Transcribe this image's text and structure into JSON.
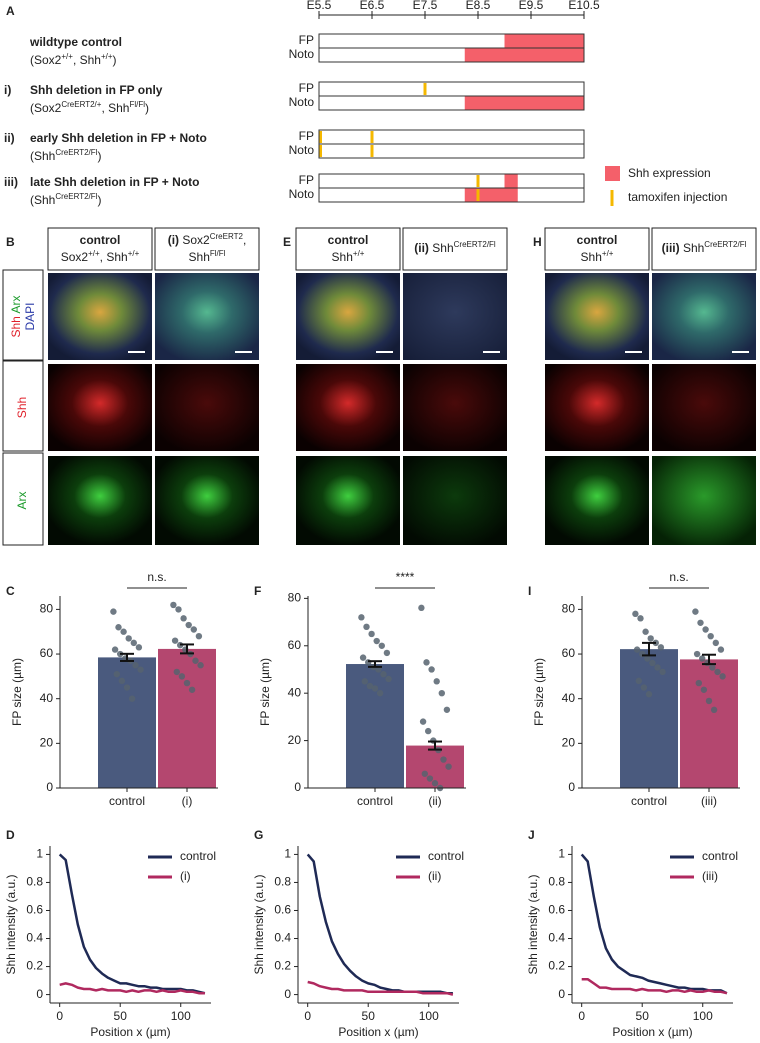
{
  "panel_a": {
    "label": "A",
    "timeline": {
      "lim": [
        5.5,
        10.5
      ],
      "ticks": [
        {
          "value": 5.5,
          "label": "E5.5"
        },
        {
          "value": 6.5,
          "label": "E6.5"
        },
        {
          "value": 7.5,
          "label": "E7.5"
        },
        {
          "value": 8.5,
          "label": "E8.5"
        },
        {
          "value": 9.5,
          "label": "E9.5"
        },
        {
          "value": 10.5,
          "label": "E10.5"
        }
      ]
    },
    "rows": [
      {
        "title": "wildtype control",
        "genotype": [
          {
            "text": "(Sox2",
            "sup": "+/+"
          },
          {
            "text": ", Shh",
            "sup": "+/+"
          },
          {
            "text": ")"
          }
        ],
        "tracks": [
          {
            "name": "FP",
            "expression": [
              [
                9.0,
                10.5
              ]
            ]
          },
          {
            "name": "Noto",
            "expression": [
              [
                8.25,
                10.5
              ]
            ]
          }
        ]
      },
      {
        "roman": "i)",
        "title": "Shh deletion in FP only",
        "genotype": [
          {
            "text": "(Sox2",
            "sup": "CreERT2/+"
          },
          {
            "text": ", Shh",
            "sup": "Fl/Fl"
          },
          {
            "text": ")"
          }
        ],
        "tracks": [
          {
            "name": "FP",
            "tamoxifen": [
              7.5
            ]
          },
          {
            "name": "Noto",
            "expression": [
              [
                8.25,
                10.5
              ]
            ]
          }
        ]
      },
      {
        "roman": "ii)",
        "title": "early Shh deletion in FP + Noto",
        "genotype": [
          {
            "text": "(Shh",
            "sup": "CreERT2/Fl"
          },
          {
            "text": ")"
          }
        ],
        "tracks": [
          {
            "name": "FP",
            "tamoxifen": [
              5.5,
              6.5
            ]
          },
          {
            "name": "Noto",
            "tamoxifen": [
              5.5,
              6.5
            ]
          }
        ]
      },
      {
        "roman": "iii)",
        "title": "late Shh deletion in FP + Noto",
        "genotype": [
          {
            "text": "(Shh",
            "sup": "CreERT2/Fl"
          },
          {
            "text": ")"
          }
        ],
        "tracks": [
          {
            "name": "FP",
            "expression": [
              [
                9.0,
                9.25
              ]
            ],
            "tamoxifen": [
              8.5
            ]
          },
          {
            "name": "Noto",
            "expression": [
              [
                8.25,
                9.25
              ]
            ],
            "tamoxifen": [
              8.5
            ]
          }
        ]
      }
    ],
    "expression_color": "#f4606a",
    "tamoxifen_color": "#f5b800",
    "legend": {
      "expression": "Shh expression",
      "tamoxifen": "tamoxifen injection"
    }
  },
  "image_panels": [
    {
      "label": "B",
      "row_labels": [
        [
          [
            {
              "text": "Shh",
              "color": "#e0202a"
            },
            {
              "text": " Arx",
              "color": "#1a9a2a"
            }
          ],
          [
            {
              "text": "DAPI",
              "color": "#2a3aa8"
            }
          ]
        ],
        [
          [
            {
              "text": "Shh",
              "color": "#e0202a"
            }
          ]
        ],
        [
          [
            {
              "text": "Arx",
              "color": "#1a9a2a"
            }
          ]
        ]
      ],
      "headers": [
        [
          [
            {
              "text": "control",
              "bold": true
            }
          ],
          [
            {
              "text": "Sox2",
              "sup": "+/+"
            },
            {
              "text": ", Shh",
              "sup": "+/+"
            }
          ]
        ],
        [
          [
            {
              "text": "(i)",
              "bold": true
            },
            {
              "text": " Sox2",
              "sup": "CreERT2"
            },
            {
              "text": ","
            }
          ],
          [
            {
              "text": "Shh",
              "sup": "Fl/Fl"
            }
          ]
        ]
      ]
    },
    {
      "label": "E",
      "headers": [
        [
          [
            {
              "text": "control",
              "bold": true
            }
          ],
          [
            {
              "text": "Shh",
              "sup": "+/+"
            }
          ]
        ],
        [
          [
            {
              "text": "(ii)",
              "bold": true
            },
            {
              "text": " Shh",
              "sup": "CreERT2/Fl"
            }
          ]
        ]
      ]
    },
    {
      "label": "H",
      "headers": [
        [
          [
            {
              "text": "control",
              "bold": true
            }
          ],
          [
            {
              "text": "Shh",
              "sup": "+/+"
            }
          ]
        ],
        [
          [
            {
              "text": "(iii)",
              "bold": true
            },
            {
              "text": " Shh",
              "sup": "CreERT2/Fl"
            }
          ]
        ]
      ]
    }
  ],
  "chart_data": [
    {
      "type": "bar",
      "label": "C",
      "categories": [
        "control",
        "(i)"
      ],
      "values": [
        58.5,
        62.3
      ],
      "errors": [
        1.6,
        2.0
      ],
      "colors": [
        "#4a5a7e",
        "#b4476f"
      ],
      "point_color": "#56636e",
      "points": [
        [
          79,
          72,
          70,
          67,
          65,
          63,
          62,
          60,
          58,
          57,
          55,
          53,
          51,
          48,
          45,
          40
        ],
        [
          82,
          80,
          76,
          73,
          71,
          68,
          66,
          64,
          62,
          60,
          57,
          55,
          52,
          50,
          47,
          44
        ]
      ],
      "ylim": [
        0,
        86
      ],
      "yticks": [
        0,
        20,
        40,
        60,
        80
      ],
      "ylabel": "FP size (µm)",
      "annotation": "n.s."
    },
    {
      "type": "bar",
      "label": "F",
      "categories": [
        "control",
        "(ii)"
      ],
      "values": [
        52.3,
        17.9
      ],
      "errors": [
        1.2,
        1.7
      ],
      "colors": [
        "#4a5a7e",
        "#b4476f"
      ],
      "point_color": "#56636e",
      "points": [
        [
          72,
          68,
          65,
          62,
          60,
          57,
          55,
          53,
          51,
          50,
          48,
          46,
          45,
          43,
          42,
          40
        ],
        [
          76,
          53,
          50,
          45,
          40,
          33,
          28,
          24,
          20,
          16,
          12,
          9,
          6,
          4,
          2,
          0
        ]
      ],
      "ylim": [
        0,
        81
      ],
      "yticks": [
        0,
        20,
        40,
        60,
        80
      ],
      "ylabel": "FP size (µm)",
      "annotation": "****"
    },
    {
      "type": "bar",
      "label": "I",
      "categories": [
        "control",
        "(iii)"
      ],
      "values": [
        62.2,
        57.6
      ],
      "errors": [
        2.8,
        2.1
      ],
      "colors": [
        "#4a5a7e",
        "#b4476f"
      ],
      "point_color": "#56636e",
      "points": [
        [
          78,
          76,
          70,
          67,
          65,
          63,
          62,
          60,
          58,
          56,
          54,
          52,
          48,
          45,
          42
        ],
        [
          79,
          74,
          71,
          68,
          65,
          62,
          60,
          58,
          56,
          54,
          52,
          50,
          47,
          44,
          39,
          35
        ]
      ],
      "ylim": [
        0,
        86
      ],
      "yticks": [
        0,
        20,
        40,
        60,
        80
      ],
      "ylabel": "FP size (µm)",
      "annotation": "n.s."
    },
    {
      "type": "line",
      "label": "D",
      "x": [
        0,
        5,
        10,
        15,
        20,
        25,
        30,
        35,
        40,
        45,
        50,
        55,
        60,
        65,
        70,
        75,
        80,
        85,
        90,
        95,
        100,
        105,
        110,
        115,
        120
      ],
      "series": [
        {
          "name": "control",
          "color": "#1f2a55",
          "values": [
            1.0,
            0.96,
            0.72,
            0.5,
            0.34,
            0.25,
            0.19,
            0.15,
            0.12,
            0.1,
            0.08,
            0.08,
            0.07,
            0.06,
            0.06,
            0.05,
            0.05,
            0.04,
            0.04,
            0.04,
            0.04,
            0.03,
            0.03,
            0.02,
            0.01
          ]
        },
        {
          "name": "(i)",
          "color": "#b0295f",
          "values": [
            0.07,
            0.08,
            0.07,
            0.05,
            0.04,
            0.04,
            0.03,
            0.04,
            0.03,
            0.03,
            0.03,
            0.02,
            0.03,
            0.02,
            0.03,
            0.03,
            0.02,
            0.03,
            0.02,
            0.02,
            0.03,
            0.02,
            0.02,
            0.01,
            0.01
          ]
        }
      ],
      "xlim": [
        -8,
        125
      ],
      "ylim": [
        -0.06,
        1.06
      ],
      "xticks": [
        0,
        50,
        100
      ],
      "yticks": [
        0,
        0.2,
        0.4,
        0.6,
        0.8,
        1
      ],
      "xlabel": "Position x (µm)",
      "ylabel": "Shh intensity (a.u.)"
    },
    {
      "type": "line",
      "label": "G",
      "x": [
        0,
        5,
        10,
        15,
        20,
        25,
        30,
        35,
        40,
        45,
        50,
        55,
        60,
        65,
        70,
        75,
        80,
        85,
        90,
        95,
        100,
        105,
        110,
        115,
        120
      ],
      "series": [
        {
          "name": "control",
          "color": "#1f2a55",
          "values": [
            1.0,
            0.95,
            0.7,
            0.52,
            0.38,
            0.29,
            0.22,
            0.17,
            0.13,
            0.1,
            0.08,
            0.07,
            0.05,
            0.04,
            0.03,
            0.03,
            0.02,
            0.02,
            0.02,
            0.02,
            0.02,
            0.02,
            0.02,
            0.01,
            0.01
          ]
        },
        {
          "name": "(ii)",
          "color": "#b0295f",
          "values": [
            0.09,
            0.08,
            0.06,
            0.05,
            0.04,
            0.04,
            0.03,
            0.03,
            0.03,
            0.03,
            0.02,
            0.02,
            0.02,
            0.02,
            0.02,
            0.02,
            0.02,
            0.02,
            0.02,
            0.01,
            0.01,
            0.01,
            0.01,
            0.01,
            0.0
          ]
        }
      ],
      "xlim": [
        -8,
        125
      ],
      "ylim": [
        -0.06,
        1.06
      ],
      "xticks": [
        0,
        50,
        100
      ],
      "yticks": [
        0,
        0.2,
        0.4,
        0.6,
        0.8,
        1
      ],
      "xlabel": "Position x (µm)",
      "ylabel": "Shh intensity (a.u.)"
    },
    {
      "type": "line",
      "label": "J",
      "x": [
        0,
        5,
        10,
        15,
        20,
        25,
        30,
        35,
        40,
        45,
        50,
        55,
        60,
        65,
        70,
        75,
        80,
        85,
        90,
        95,
        100,
        105,
        110,
        115,
        120
      ],
      "series": [
        {
          "name": "control",
          "color": "#1f2a55",
          "values": [
            1.0,
            0.95,
            0.7,
            0.48,
            0.33,
            0.25,
            0.2,
            0.17,
            0.14,
            0.13,
            0.12,
            0.1,
            0.09,
            0.08,
            0.07,
            0.06,
            0.05,
            0.05,
            0.04,
            0.04,
            0.04,
            0.03,
            0.03,
            0.03,
            0.01
          ]
        },
        {
          "name": "(iii)",
          "color": "#b0295f",
          "values": [
            0.11,
            0.11,
            0.08,
            0.05,
            0.05,
            0.04,
            0.04,
            0.04,
            0.04,
            0.03,
            0.04,
            0.03,
            0.03,
            0.03,
            0.02,
            0.03,
            0.03,
            0.02,
            0.03,
            0.02,
            0.02,
            0.03,
            0.02,
            0.02,
            0.01
          ]
        }
      ],
      "xlim": [
        -8,
        125
      ],
      "ylim": [
        -0.06,
        1.06
      ],
      "xticks": [
        0,
        50,
        100
      ],
      "yticks": [
        0,
        0.2,
        0.4,
        0.6,
        0.8,
        1
      ],
      "xlabel": "Position x (µm)",
      "ylabel": "Shh intensity (a.u.)"
    }
  ]
}
